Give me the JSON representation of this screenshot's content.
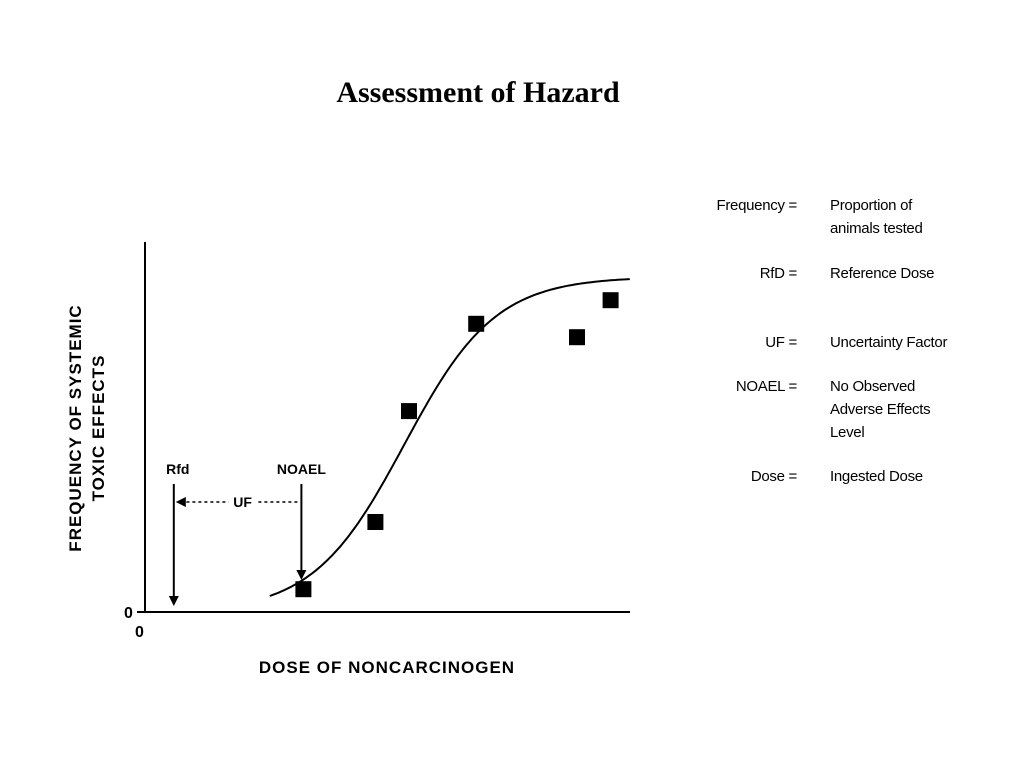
{
  "slide": {
    "title": "Assessment of Hazard"
  },
  "chart_data": {
    "type": "scatter",
    "xlabel": "DOSE OF NONCARCINOGEN",
    "ylabel_line1": "FREQUENCY OF SYSTEMIC",
    "ylabel_line2": "TOXIC EFFECTS",
    "x_origin_label": "0",
    "y_origin_label": "0",
    "xlim": [
      0,
      100
    ],
    "ylim": [
      0,
      100
    ],
    "points": [
      {
        "x": 33,
        "y": 5
      },
      {
        "x": 48,
        "y": 25
      },
      {
        "x": 55,
        "y": 58
      },
      {
        "x": 69,
        "y": 84
      },
      {
        "x": 90,
        "y": 80
      },
      {
        "x": 97,
        "y": 91
      }
    ],
    "fitted_curve": "sigmoid",
    "markers": {
      "rfd": {
        "label": "Rfd",
        "x": 6
      },
      "noael": {
        "label": "NOAEL",
        "x": 33
      },
      "uf": {
        "label": "UF"
      }
    }
  },
  "legend": {
    "items": [
      {
        "term": "Frequency =",
        "definition_lines": [
          "Proportion of",
          "animals tested"
        ]
      },
      {
        "term": "RfD =",
        "definition_lines": [
          "Reference Dose"
        ]
      },
      {
        "term": "UF =",
        "definition_lines": [
          "Uncertainty Factor"
        ]
      },
      {
        "term": "NOAEL =",
        "definition_lines": [
          "No Observed",
          "Adverse Effects",
          "Level"
        ]
      },
      {
        "term": "Dose =",
        "definition_lines": [
          "Ingested Dose"
        ]
      }
    ]
  },
  "colors": {
    "ink": "#000000",
    "background": "#ffffff"
  }
}
